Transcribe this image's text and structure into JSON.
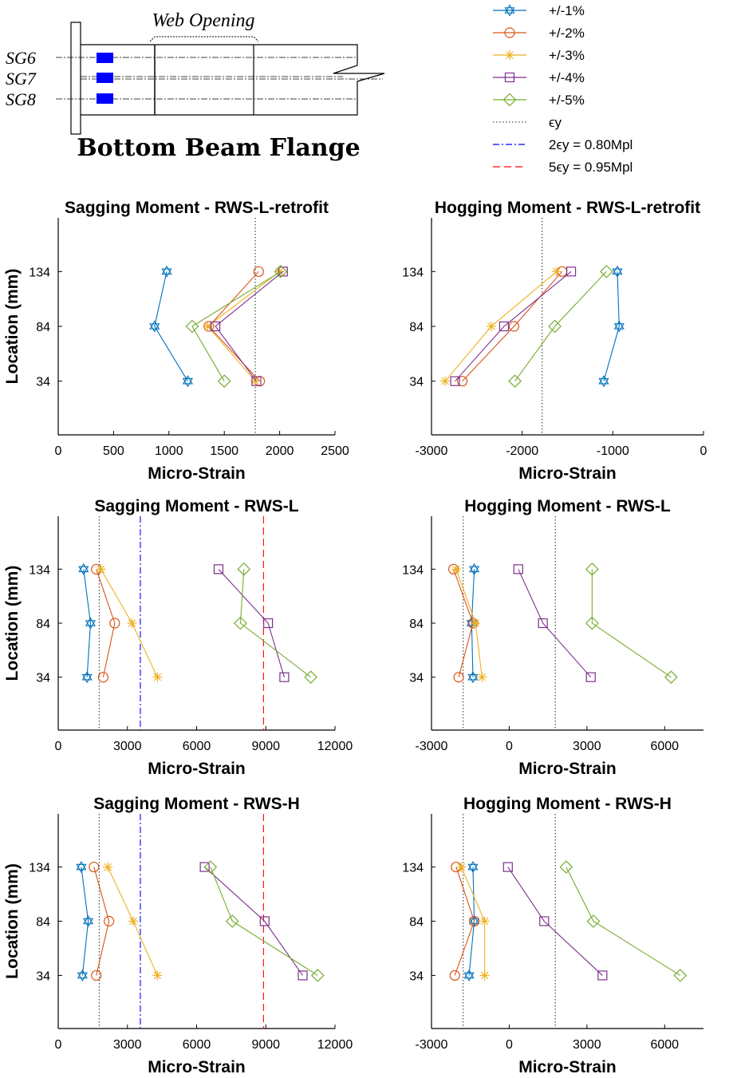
{
  "diagram": {
    "title": "Bottom Beam Flange",
    "opening_label": "Web Opening",
    "gauges": [
      "SG6",
      "SG7",
      "SG8"
    ]
  },
  "legend": {
    "entries": [
      {
        "label": "+/-1%",
        "color": "#0072BD",
        "marker": "hexagram",
        "line": "solid"
      },
      {
        "label": "+/-2%",
        "color": "#D95319",
        "marker": "circle",
        "line": "solid"
      },
      {
        "label": "+/-3%",
        "color": "#EDB120",
        "marker": "asterisk",
        "line": "solid"
      },
      {
        "label": "+/-4%",
        "color": "#7E2F8E",
        "marker": "square",
        "line": "solid"
      },
      {
        "label": "+/-5%",
        "color": "#77AC30",
        "marker": "diamond",
        "line": "solid"
      },
      {
        "label": "ϵy",
        "color": "#555555",
        "marker": "none",
        "line": "dotted"
      },
      {
        "label": "2ϵy = 0.80Mpl",
        "color": "#0000FF",
        "marker": "none",
        "line": "dashdot"
      },
      {
        "label": "5ϵy = 0.95Mpl",
        "color": "#FF0000",
        "marker": "none",
        "line": "dashed"
      }
    ]
  },
  "chart_data": [
    {
      "type": "line",
      "title": "Sagging Moment - RWS-L-retrofit",
      "xlabel": "Micro-Strain",
      "ylabel": "Location (mm)",
      "xlim": [
        0,
        2500
      ],
      "ylim": [
        -15,
        183
      ],
      "xticks": [
        "0",
        "500",
        "1000",
        "1500",
        "2000",
        "2500"
      ],
      "yticks": [
        "34",
        "84",
        "134"
      ],
      "y": [
        134,
        84,
        34
      ],
      "series": [
        {
          "name": "+/-1%",
          "values": [
            980,
            870,
            1170
          ]
        },
        {
          "name": "+/-2%",
          "values": [
            1810,
            1360,
            1820
          ]
        },
        {
          "name": "+/-3%",
          "values": [
            2000,
            1350,
            1780
          ]
        },
        {
          "name": "+/-4%",
          "values": [
            2030,
            1420,
            1790
          ]
        },
        {
          "name": "+/-5%",
          "values": [
            2010,
            1210,
            1500
          ]
        }
      ],
      "ref_lines": [
        {
          "name": "ϵy",
          "value": 1780
        }
      ]
    },
    {
      "type": "line",
      "title": "Hogging Moment - RWS-L-retrofit",
      "xlabel": "Micro-Strain",
      "ylabel": "",
      "xlim": [
        -3000,
        0
      ],
      "ylim": [
        -15,
        183
      ],
      "xticks": [
        "-3000",
        "-2000",
        "-1000",
        "0"
      ],
      "yticks": [
        "34",
        "84",
        "134"
      ],
      "y": [
        134,
        84,
        34
      ],
      "series": [
        {
          "name": "+/-1%",
          "values": [
            -950,
            -930,
            -1100
          ]
        },
        {
          "name": "+/-2%",
          "values": [
            -1560,
            -2090,
            -2660
          ]
        },
        {
          "name": "+/-3%",
          "values": [
            -1620,
            -2340,
            -2850
          ]
        },
        {
          "name": "+/-4%",
          "values": [
            -1460,
            -2200,
            -2740
          ]
        },
        {
          "name": "+/-5%",
          "values": [
            -1070,
            -1640,
            -2080
          ]
        }
      ],
      "ref_lines": [
        {
          "name": "ϵy",
          "value": -1780
        }
      ]
    },
    {
      "type": "line",
      "title": "Sagging Moment - RWS-L",
      "xlabel": "Micro-Strain",
      "ylabel": "Location (mm)",
      "xlim": [
        0,
        12000
      ],
      "ylim": [
        -15,
        183
      ],
      "xticks": [
        "0",
        "3000",
        "6000",
        "9000",
        "12000"
      ],
      "yticks": [
        "34",
        "84",
        "134"
      ],
      "y": [
        134,
        84,
        34
      ],
      "series": [
        {
          "name": "+/-1%",
          "values": [
            1100,
            1400,
            1250
          ]
        },
        {
          "name": "+/-2%",
          "values": [
            1650,
            2450,
            1950
          ]
        },
        {
          "name": "+/-3%",
          "values": [
            1850,
            3200,
            4300
          ]
        },
        {
          "name": "+/-4%",
          "values": [
            6950,
            9100,
            9800
          ]
        },
        {
          "name": "+/-5%",
          "values": [
            8050,
            7900,
            10950
          ]
        }
      ],
      "ref_lines": [
        {
          "name": "ϵy",
          "value": 1780
        },
        {
          "name": "2ϵy = 0.80Mpl",
          "value": 3560
        },
        {
          "name": "5ϵy = 0.95Mpl",
          "value": 8900
        }
      ]
    },
    {
      "type": "line",
      "title": "Hogging Moment - RWS-L",
      "xlabel": "Micro-Strain",
      "ylabel": "",
      "xlim": [
        -3000,
        7500
      ],
      "ylim": [
        -15,
        183
      ],
      "xticks": [
        "-3000",
        "0",
        "3000",
        "6000"
      ],
      "yticks": [
        "34",
        "84",
        "134"
      ],
      "y": [
        134,
        84,
        34
      ],
      "series": [
        {
          "name": "+/-1%",
          "values": [
            -1350,
            -1450,
            -1400
          ]
        },
        {
          "name": "+/-2%",
          "values": [
            -2150,
            -1400,
            -1950
          ]
        },
        {
          "name": "+/-3%",
          "values": [
            -2050,
            -1300,
            -1050
          ]
        },
        {
          "name": "+/-4%",
          "values": [
            350,
            1300,
            3150
          ]
        },
        {
          "name": "+/-5%",
          "values": [
            3200,
            3200,
            6250
          ]
        }
      ],
      "ref_lines": [
        {
          "name": "ϵy",
          "value": -1780
        },
        {
          "name": "ϵy",
          "value": 1780
        }
      ]
    },
    {
      "type": "line",
      "title": "Sagging Moment - RWS-H",
      "xlabel": "Micro-Strain",
      "ylabel": "Location (mm)",
      "xlim": [
        0,
        12000
      ],
      "ylim": [
        -15,
        183
      ],
      "xticks": [
        "0",
        "3000",
        "6000",
        "9000",
        "12000"
      ],
      "yticks": [
        "34",
        "84",
        "134"
      ],
      "y": [
        134,
        84,
        34
      ],
      "series": [
        {
          "name": "+/-1%",
          "values": [
            1000,
            1300,
            1050
          ]
        },
        {
          "name": "+/-2%",
          "values": [
            1550,
            2200,
            1650
          ]
        },
        {
          "name": "+/-3%",
          "values": [
            2150,
            3250,
            4300
          ]
        },
        {
          "name": "+/-4%",
          "values": [
            6350,
            8950,
            10600
          ]
        },
        {
          "name": "+/-5%",
          "values": [
            6600,
            7550,
            11250
          ]
        }
      ],
      "ref_lines": [
        {
          "name": "ϵy",
          "value": 1780
        },
        {
          "name": "2ϵy = 0.80Mpl",
          "value": 3560
        },
        {
          "name": "5ϵy = 0.95Mpl",
          "value": 8900
        }
      ]
    },
    {
      "type": "line",
      "title": "Hogging Moment - RWS-H",
      "xlabel": "Micro-Strain",
      "ylabel": "",
      "xlim": [
        -3000,
        7500
      ],
      "ylim": [
        -15,
        183
      ],
      "xticks": [
        "-3000",
        "0",
        "3000",
        "6000"
      ],
      "yticks": [
        "34",
        "84",
        "134"
      ],
      "y": [
        134,
        84,
        34
      ],
      "series": [
        {
          "name": "+/-1%",
          "values": [
            -1400,
            -1350,
            -1550
          ]
        },
        {
          "name": "+/-2%",
          "values": [
            -2050,
            -1350,
            -2100
          ]
        },
        {
          "name": "+/-3%",
          "values": [
            -1850,
            -950,
            -950
          ]
        },
        {
          "name": "+/-4%",
          "values": [
            -50,
            1350,
            3600
          ]
        },
        {
          "name": "+/-5%",
          "values": [
            2200,
            3250,
            6600
          ]
        }
      ],
      "ref_lines": [
        {
          "name": "ϵy",
          "value": -1780
        },
        {
          "name": "ϵy",
          "value": 1780
        }
      ]
    }
  ]
}
